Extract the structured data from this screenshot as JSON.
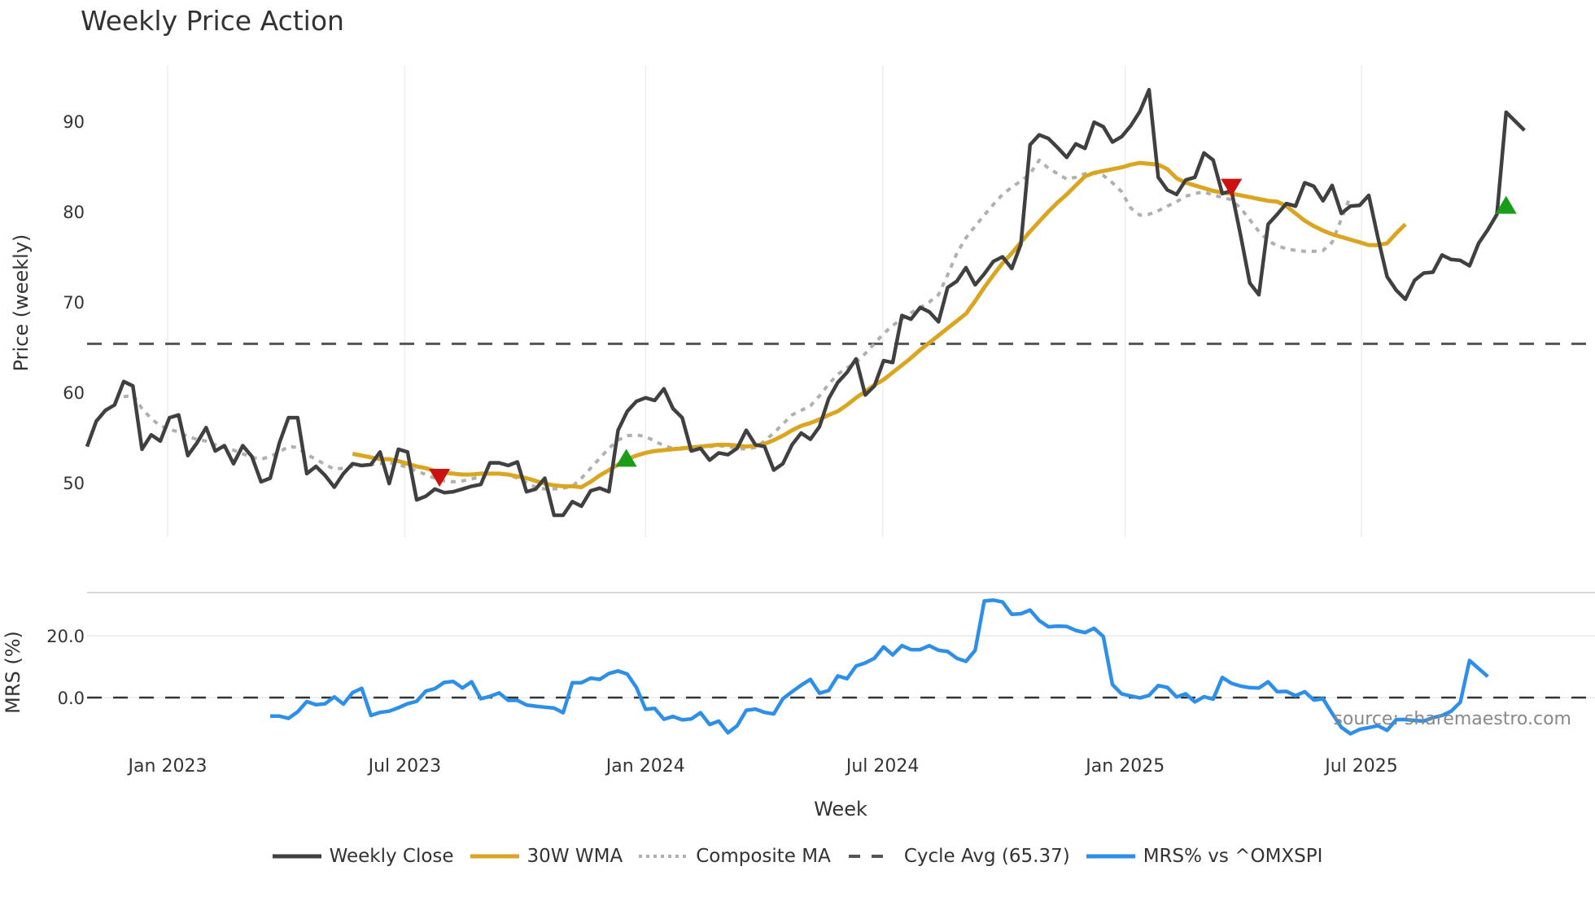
{
  "title": "Weekly Price Action",
  "price_panel": {
    "ylabel": "Price (weekly)",
    "yticks": [
      50,
      60,
      70,
      80,
      90
    ],
    "ylim": [
      43,
      96
    ],
    "cycle_avg": 65.37
  },
  "mrs_panel": {
    "ylabel": "MRS (%)",
    "yticks": [
      {
        "v": 0,
        "label": "0.0"
      },
      {
        "v": 20,
        "label": "20.0"
      }
    ],
    "ylim": [
      -20,
      34
    ]
  },
  "xaxis": {
    "title": "Week",
    "ticks": [
      {
        "label": "Jan 2023",
        "week": 8.8
      },
      {
        "label": "Jul 2023",
        "week": 34.7
      },
      {
        "label": "Jan 2024",
        "week": 61.0
      },
      {
        "label": "Jul 2024",
        "week": 86.9
      },
      {
        "label": "Jan 2025",
        "week": 113.4
      },
      {
        "label": "Jul 2025",
        "week": 139.2
      }
    ]
  },
  "source_text": "source: sharemaestro.com",
  "legend": [
    {
      "label": "Weekly Close",
      "color": "#404040",
      "style": "solid"
    },
    {
      "label": "30W WMA",
      "color": "#DAA520",
      "style": "solid"
    },
    {
      "label": "Composite MA",
      "color": "#B0B0B0",
      "style": "dotted"
    },
    {
      "label": "Cycle Avg (65.37)",
      "color": "#555555",
      "style": "dashed"
    },
    {
      "label": "MRS% vs ^OMXSPI",
      "color": "#2E8FE8",
      "style": "solid"
    }
  ],
  "colors": {
    "close": "#404040",
    "wma": "#DAA520",
    "composite": "#B0B0B0",
    "cycle": "#555555",
    "mrs": "#2E8FE8",
    "buy": "#1A9E1A",
    "sell": "#CC1111",
    "grid": "#ECEEF2"
  },
  "chart_data": {
    "type": "line",
    "title": "Weekly Price Action",
    "xlabel": "Week",
    "ylabel": "Price (weekly)",
    "ylim": [
      43,
      96
    ],
    "x_range_weeks": [
      0,
      156
    ],
    "series": [
      {
        "name": "Weekly Close",
        "start_week": 0,
        "values": [
          54.0,
          56.8,
          58.0,
          58.6,
          61.2,
          60.7,
          53.7,
          55.3,
          54.6,
          57.2,
          57.5,
          53.0,
          54.4,
          56.1,
          53.5,
          54.1,
          52.1,
          54.1,
          52.9,
          50.1,
          50.5,
          54.4,
          57.2,
          57.2,
          51.0,
          51.8,
          50.8,
          49.5,
          51.0,
          52.1,
          51.9,
          52.0,
          53.4,
          49.9,
          53.7,
          53.4,
          48.1,
          48.5,
          49.3,
          48.9,
          49.0,
          49.3,
          49.6,
          49.8,
          52.2,
          52.2,
          51.9,
          52.3,
          49.0,
          49.3,
          50.5,
          46.4,
          46.4,
          47.9,
          47.4,
          49.1,
          49.4,
          49.0,
          55.8,
          57.9,
          59.0,
          59.4,
          59.1,
          60.4,
          58.2,
          57.2,
          53.5,
          53.8,
          52.5,
          53.3,
          53.1,
          53.8,
          55.8,
          54.2,
          54.0,
          51.4,
          52.1,
          54.2,
          55.5,
          54.8,
          56.2,
          59.3,
          61.1,
          62.2,
          63.7,
          59.7,
          60.7,
          63.5,
          63.3,
          68.5,
          68.1,
          69.4,
          68.9,
          67.8,
          71.6,
          72.3,
          73.8,
          71.9,
          73.1,
          74.5,
          75.0,
          73.7,
          76.4,
          87.4,
          88.5,
          88.1,
          87.1,
          86.0,
          87.5,
          87.0,
          89.9,
          89.4,
          87.7,
          88.3,
          89.5,
          91.1,
          93.5,
          83.8,
          82.4,
          81.9,
          83.5,
          83.8,
          86.5,
          85.7,
          82.0,
          82.3,
          77.4,
          72.1,
          70.8,
          78.6,
          79.7,
          80.9,
          80.6,
          83.2,
          82.8,
          81.2,
          82.9,
          79.8,
          80.6,
          80.7,
          81.8,
          77.1,
          72.8,
          71.3,
          70.3,
          72.4,
          73.2,
          73.3,
          75.2,
          74.7,
          74.6,
          74.0,
          76.5,
          78.0,
          79.7,
          91.0,
          90.0,
          89.0
        ]
      },
      {
        "name": "30W WMA",
        "start_week": 29,
        "values": [
          53.2,
          53.0,
          52.8,
          52.6,
          52.6,
          52.4,
          52.1,
          51.8,
          51.6,
          51.3,
          51.1,
          51.0,
          50.9,
          50.9,
          51.0,
          51.0,
          51.0,
          50.9,
          50.7,
          50.5,
          50.2,
          49.9,
          49.7,
          49.6,
          49.6,
          49.5,
          50.1,
          50.8,
          51.4,
          52.0,
          52.6,
          53.0,
          53.3,
          53.5,
          53.6,
          53.7,
          53.8,
          53.9,
          54.0,
          54.1,
          54.2,
          54.2,
          54.1,
          54.0,
          54.1,
          54.3,
          54.7,
          55.2,
          55.8,
          56.3,
          56.6,
          57.0,
          57.5,
          57.9,
          58.6,
          59.4,
          60.1,
          60.8,
          61.4,
          62.2,
          63.0,
          63.8,
          64.7,
          65.5,
          66.3,
          67.1,
          67.9,
          68.7,
          70.1,
          71.6,
          73.0,
          74.3,
          75.4,
          76.6,
          77.8,
          78.9,
          80.0,
          81.0,
          81.9,
          82.9,
          83.9,
          84.3,
          84.5,
          84.7,
          84.9,
          85.2,
          85.4,
          85.3,
          85.2,
          84.7,
          83.7,
          83.2,
          82.9,
          82.6,
          82.3,
          82.1,
          82.0,
          81.8,
          81.6,
          81.4,
          81.2,
          81.1,
          80.6,
          79.8,
          79.0,
          78.4,
          77.9,
          77.5,
          77.2,
          76.9,
          76.6,
          76.3,
          76.3,
          76.5,
          77.6,
          78.6
        ]
      },
      {
        "name": "Composite MA",
        "start_week": 4,
        "values": [
          59.5,
          59.7,
          58.2,
          57.1,
          56.3,
          55.9,
          55.6,
          55.1,
          54.8,
          54.6,
          54.2,
          53.9,
          53.6,
          53.2,
          52.8,
          52.6,
          52.9,
          53.4,
          54.0,
          53.9,
          53.1,
          52.6,
          52.0,
          51.5,
          51.6,
          51.8,
          51.9,
          52.0,
          52.1,
          52.2,
          52.0,
          51.7,
          51.3,
          50.9,
          50.5,
          50.2,
          50.1,
          50.2,
          50.4,
          50.7,
          51.0,
          51.0,
          50.9,
          50.5,
          50.0,
          49.5,
          49.3,
          49.3,
          49.4,
          49.6,
          50.5,
          51.6,
          52.7,
          53.8,
          54.7,
          55.2,
          55.3,
          55.1,
          54.6,
          54.1,
          53.8,
          53.7,
          53.7,
          53.8,
          54.0,
          54.1,
          54.0,
          53.8,
          53.7,
          53.9,
          54.6,
          55.5,
          56.5,
          57.5,
          58.0,
          58.5,
          59.6,
          60.9,
          62.0,
          62.7,
          63.3,
          64.3,
          65.4,
          66.5,
          67.4,
          68.1,
          68.8,
          69.4,
          70.0,
          70.8,
          73.0,
          75.4,
          77.1,
          78.4,
          79.6,
          80.8,
          81.9,
          82.7,
          83.4,
          84.2,
          85.7,
          84.8,
          84.2,
          83.6,
          83.8,
          84.2,
          84.3,
          84.0,
          83.2,
          82.2,
          80.4,
          79.6,
          79.7,
          80.1,
          80.6,
          81.1,
          81.7,
          82.0,
          82.2,
          81.8,
          81.6,
          81.3,
          80.4,
          79.1,
          77.8,
          76.8,
          76.2,
          75.9,
          75.7,
          75.6,
          75.6,
          75.7,
          76.6,
          79.2,
          81.7
        ]
      },
      {
        "name": "MRS% vs ^OMXSPI",
        "start_week": 20,
        "values": [
          -6.0,
          -6.0,
          -6.7,
          -4.6,
          -1.3,
          -2.3,
          -2.0,
          0.2,
          -2.1,
          1.6,
          3.0,
          -5.8,
          -4.8,
          -4.4,
          -3.3,
          -2.0,
          -1.2,
          2.1,
          2.9,
          4.9,
          5.2,
          3.1,
          5.1,
          -0.4,
          0.4,
          1.5,
          -0.9,
          -0.9,
          -2.4,
          -2.8,
          -3.1,
          -3.4,
          -4.9,
          4.8,
          4.8,
          6.3,
          5.9,
          7.8,
          8.6,
          7.6,
          3.3,
          -3.8,
          -3.5,
          -7.0,
          -6.1,
          -7.2,
          -6.9,
          -4.9,
          -8.7,
          -7.6,
          -11.4,
          -9.1,
          -4.1,
          -3.7,
          -4.8,
          -5.3,
          -0.4,
          1.9,
          4.0,
          5.9,
          1.4,
          2.3,
          7.0,
          6.1,
          10.2,
          11.2,
          12.7,
          16.4,
          13.8,
          16.8,
          15.5,
          15.5,
          16.8,
          15.3,
          14.9,
          12.7,
          11.7,
          15.3,
          31.2,
          31.5,
          30.9,
          26.9,
          27.1,
          28.3,
          24.9,
          22.9,
          23.1,
          23.0,
          21.7,
          21.0,
          22.4,
          19.7,
          4.2,
          1.2,
          0.5,
          -0.1,
          0.7,
          3.9,
          3.3,
          0.2,
          1.2,
          -1.4,
          0.3,
          -0.5,
          6.5,
          4.6,
          3.7,
          3.2,
          3.1,
          5.1,
          1.9,
          2.0,
          0.6,
          1.9,
          -0.8,
          -0.4,
          -5.1,
          -9.6,
          -11.7,
          -10.3,
          -9.7,
          -9.1,
          -10.6,
          -7.1,
          -7.1,
          -7.4,
          -7.6,
          -6.5,
          -5.8,
          -4.4,
          -1.5,
          12.0,
          9.4,
          6.8
        ]
      }
    ],
    "reference_lines": [
      {
        "name": "Cycle Avg",
        "value": 65.37,
        "style": "dashed"
      },
      {
        "name": "MRS zero",
        "value": 0,
        "style": "dashed",
        "panel": "mrs"
      }
    ],
    "markers": [
      {
        "type": "sell",
        "shape": "triangle-down",
        "week": 38.5,
        "value": 50.6
      },
      {
        "type": "buy",
        "shape": "triangle-up",
        "week": 58.9,
        "value": 52.7
      },
      {
        "type": "sell",
        "shape": "triangle-down",
        "week": 125.0,
        "value": 82.7
      },
      {
        "type": "buy",
        "shape": "triangle-up",
        "week": 155.0,
        "value": 80.7
      }
    ],
    "panels": [
      {
        "name": "price",
        "ylabel": "Price (weekly)",
        "yticks": [
          50,
          60,
          70,
          80,
          90
        ]
      },
      {
        "name": "mrs",
        "ylabel": "MRS (%)",
        "yticks": [
          0.0,
          20.0
        ]
      }
    ],
    "xticks": [
      "Jan 2023",
      "Jul 2023",
      "Jan 2024",
      "Jul 2024",
      "Jan 2025",
      "Jul 2025"
    ],
    "legend_position": "bottom",
    "grid": true
  }
}
